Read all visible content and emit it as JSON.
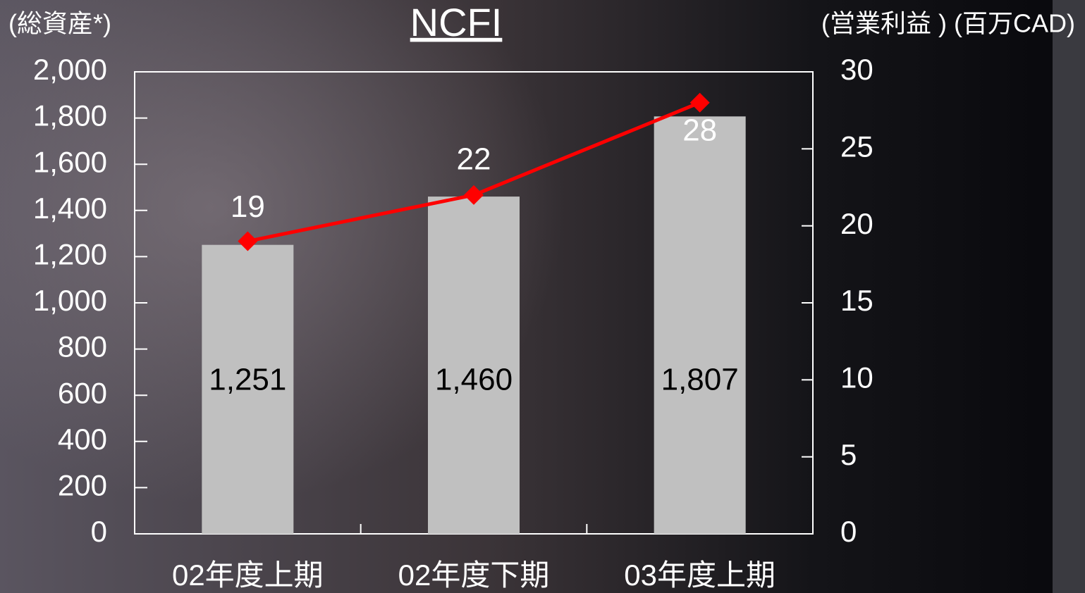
{
  "chart_data": {
    "type": "bar",
    "title": "NCFI",
    "y_label": "(総資産*)",
    "y2_label": "(営業利益 ) (百万CAD)",
    "categories": [
      "02年度上期",
      "02年度下期",
      "03年度上期"
    ],
    "series": [
      {
        "name": "総資産",
        "type": "bar",
        "color": "#c0c0c0",
        "values": [
          1251,
          1460,
          1807
        ],
        "value_labels": [
          "1,251",
          "1,460",
          "1,807"
        ]
      },
      {
        "name": "営業利益",
        "type": "line",
        "axis": "y2",
        "color": "#ff0000",
        "values": [
          19,
          22,
          28
        ]
      }
    ],
    "ylim": [
      0,
      2000
    ],
    "yticks": [
      0,
      200,
      400,
      600,
      800,
      {
        "value": 1000,
        "label": "1,000"
      },
      {
        "value": 1200,
        "label": "1,200"
      },
      {
        "value": 1400,
        "label": "1,400"
      },
      {
        "value": 1600,
        "label": "1,600"
      },
      {
        "value": 1800,
        "label": "1,800"
      },
      {
        "value": 2000,
        "label": "2,000"
      }
    ],
    "y2lim": [
      0,
      30
    ],
    "y2ticks": [
      0,
      5,
      10,
      15,
      20,
      25,
      30
    ],
    "grid": false
  }
}
